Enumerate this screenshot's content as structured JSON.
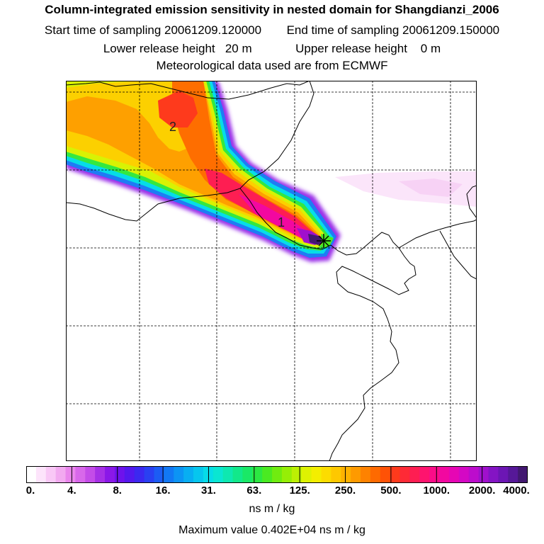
{
  "title": {
    "line1": "Column-integrated emission sensitivity in nested domain for Shangdianzi_2006",
    "start_label": "Start time of sampling 20061209.120000",
    "end_label": "End time of sampling 20061209.150000",
    "lower_label": "Lower release height   20 m",
    "upper_label": "Upper release height    0 m",
    "met_label": "Meteorological data used are from ECMWF"
  },
  "map": {
    "markers": [
      {
        "label": "1"
      },
      {
        "label": "2"
      }
    ],
    "receptor": "Shangdianzi"
  },
  "colorbar": {
    "ticks": [
      "0.",
      "4.",
      "8.",
      "16.",
      "31.",
      "63.",
      "125.",
      "250.",
      "500.",
      "1000.",
      "2000.",
      "4000."
    ],
    "colors": [
      "#ffffff",
      "#fde4fb",
      "#f9c8f6",
      "#f2aaf0",
      "#e986ec",
      "#d868ea",
      "#c44ce8",
      "#a630e6",
      "#8a18e8",
      "#6e12ec",
      "#5418ee",
      "#3c28f0",
      "#2a40f2",
      "#1c5cf4",
      "#1278f4",
      "#0c94f4",
      "#08aef2",
      "#06c6ee",
      "#06dce8",
      "#0ae6d2",
      "#0ee8b0",
      "#12e88a",
      "#1ae866",
      "#2ce842",
      "#4aea22",
      "#70ec10",
      "#96ee06",
      "#bcf004",
      "#def202",
      "#f4ee00",
      "#fcdc00",
      "#fec800",
      "#feb200",
      "#fe9a00",
      "#fe8200",
      "#fe6a00",
      "#fe5206",
      "#fe3a1c",
      "#fe2a36",
      "#fe1e52",
      "#fe146e",
      "#fa0c88",
      "#f208a0",
      "#e606b4",
      "#d408c4",
      "#bc0ccc",
      "#a010cc",
      "#8414c4",
      "#6c16b4",
      "#561898",
      "#421870"
    ],
    "units": "ns m / kg"
  },
  "max_value_label": "Maximum value  0.402E+04 ns m / kg"
}
